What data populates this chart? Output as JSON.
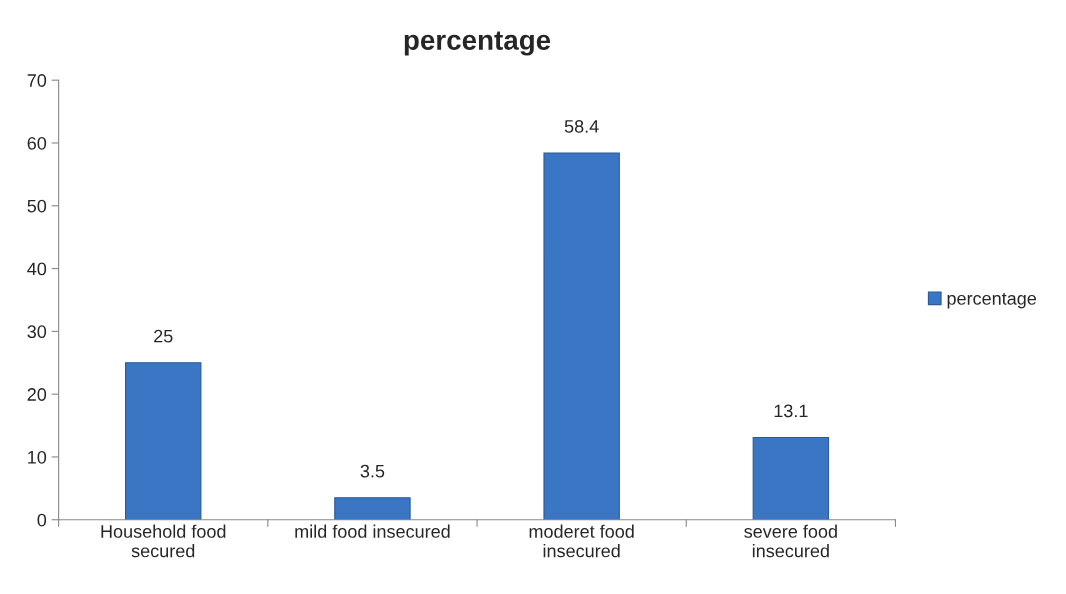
{
  "chart_data": {
    "type": "bar",
    "title": "percentage",
    "categories": [
      "Household food\nsecured",
      "mild food insecured",
      "moderet food\ninsecured",
      "severe food\ninsecured"
    ],
    "series": [
      {
        "name": "percentage",
        "color": "#3a76c4",
        "values": [
          25,
          3.5,
          58.4,
          13.1
        ]
      }
    ],
    "ylim": [
      0,
      70
    ],
    "yticks": [
      0,
      10,
      20,
      30,
      40,
      50,
      60,
      70
    ],
    "grid": false,
    "legend": "right",
    "data_labels": true
  }
}
